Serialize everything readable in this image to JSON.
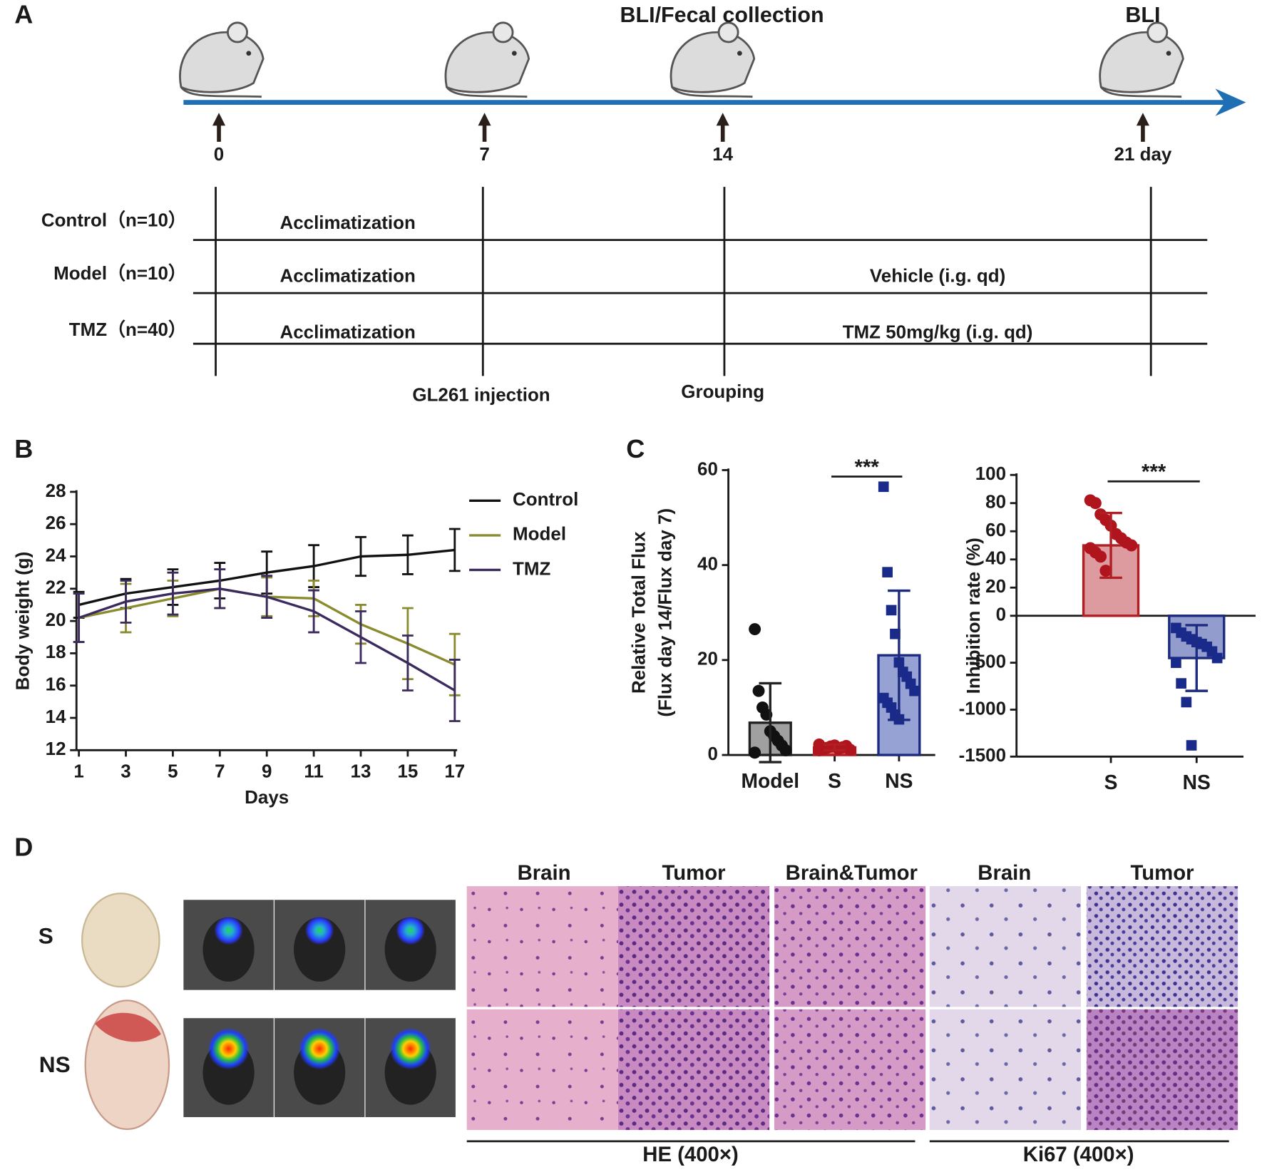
{
  "panel_labels": [
    "A",
    "B",
    "C",
    "D"
  ],
  "timeline": {
    "header_labels": [
      "BLI/Fecal collection",
      "BLI"
    ],
    "days": [
      "0",
      "7",
      "14",
      "21 day"
    ],
    "groups": [
      {
        "name": "Control（n=10）",
        "phases": [
          "Acclimatization"
        ]
      },
      {
        "name": "Model（n=10）",
        "phases": [
          "Acclimatization",
          "Vehicle (i.g. qd)"
        ]
      },
      {
        "name": "TMZ（n=40）",
        "phases": [
          "Acclimatization",
          "TMZ  50mg/kg (i.g. qd)"
        ]
      }
    ],
    "events": [
      "GL261  injection",
      "Grouping"
    ]
  },
  "chart_data": [
    {
      "type": "line",
      "xlabel": "Days",
      "ylabel": "Body weight (g)",
      "x": [
        1,
        3,
        5,
        7,
        9,
        11,
        13,
        15,
        17
      ],
      "xlim": [
        1,
        17
      ],
      "xticks": [
        1,
        3,
        5,
        7,
        9,
        11,
        13,
        15,
        17
      ],
      "ylim": [
        12,
        28
      ],
      "yticks": [
        12,
        14,
        16,
        18,
        20,
        22,
        24,
        26,
        28
      ],
      "grid": false,
      "legend": "right",
      "series": [
        {
          "name": "Control",
          "color": "#111111",
          "values": [
            21.0,
            21.7,
            22.1,
            22.5,
            23.0,
            23.4,
            24.0,
            24.1,
            24.4
          ],
          "errors": [
            0.8,
            0.9,
            1.1,
            1.1,
            1.3,
            1.3,
            1.2,
            1.2,
            1.3
          ]
        },
        {
          "name": "Model",
          "color": "#8a8a2e",
          "values": [
            20.2,
            20.8,
            21.4,
            22.0,
            21.5,
            21.4,
            19.8,
            18.6,
            17.3
          ],
          "errors": [
            1.5,
            1.5,
            1.1,
            1.2,
            1.2,
            1.1,
            1.2,
            2.2,
            1.9
          ]
        },
        {
          "name": "TMZ",
          "color": "#3b2a5e",
          "values": [
            20.2,
            21.2,
            21.7,
            22.0,
            21.5,
            20.6,
            19.0,
            17.4,
            15.7
          ],
          "errors": [
            1.5,
            1.3,
            1.3,
            1.2,
            1.3,
            1.3,
            1.6,
            1.7,
            1.9
          ]
        }
      ]
    },
    {
      "type": "bar",
      "ylabel": [
        "Relative Total Flux",
        "(Flux day 14/Flux day 7)"
      ],
      "categories": [
        "Model",
        "S",
        "NS"
      ],
      "values": [
        6.8,
        1.6,
        21
      ],
      "errors": [
        8.3,
        0.6,
        13.6
      ],
      "points": [
        [
          26.5,
          13.5,
          10,
          8.5,
          5,
          4,
          3,
          2,
          1,
          0.5
        ],
        [
          1.0,
          1.2,
          1.5,
          1.8,
          2.0,
          1.3,
          1.6,
          1.9,
          1.1,
          2.2
        ],
        [
          56.5,
          38.5,
          30.5,
          25.5,
          19.5,
          17.5,
          16.5,
          15,
          13.5,
          12,
          11,
          10,
          8.5,
          7.5
        ]
      ],
      "colors": [
        "#8f8f8f",
        "#d8585c",
        "#8592cc"
      ],
      "edge_colors": [
        "#222222",
        "#b01f24",
        "#1c2a80"
      ],
      "point_colors": [
        "#111111",
        "#b0141c",
        "#1a2a8a"
      ],
      "markers": [
        "circle",
        "circle",
        "square"
      ],
      "ylim": [
        0,
        60
      ],
      "yticks": [
        0,
        20,
        40,
        60
      ],
      "annotations": [
        {
          "text": "***",
          "categories": [
            "S",
            "NS"
          ]
        }
      ]
    },
    {
      "type": "bar",
      "ylabel": [
        "Inhibition rate (%)"
      ],
      "categories": [
        "S",
        "NS"
      ],
      "values": [
        50,
        -450
      ],
      "errors": [
        23,
        350
      ],
      "points": [
        [
          82,
          80,
          72,
          68,
          64,
          58,
          55,
          52,
          50,
          48,
          45,
          42,
          32
        ],
        [
          -130,
          -180,
          -220,
          -250,
          -280,
          -300,
          -330,
          -380,
          -450,
          -500,
          -720,
          -920,
          -1380
        ]
      ],
      "colors": [
        "#d88a8e",
        "#7f8cc4"
      ],
      "edge_colors": [
        "#b01f24",
        "#1c2a80"
      ],
      "point_colors": [
        "#b0141c",
        "#1a2a8a"
      ],
      "markers": [
        "circle",
        "square"
      ],
      "ylim": [
        -1500,
        100
      ],
      "yscale": "split-at-zero",
      "yticks": [
        -1500,
        -1000,
        -500,
        0,
        20,
        40,
        60,
        80,
        100
      ],
      "annotations": [
        {
          "text": "***",
          "categories": [
            "S",
            "NS"
          ]
        }
      ]
    }
  ],
  "histology": {
    "rows": [
      "S",
      "NS"
    ],
    "columns": [
      "Brain",
      "Tumor",
      "Brain&Tumor",
      "Brain",
      "Tumor"
    ],
    "stains": [
      "HE (400×)",
      "Ki67 (400×)"
    ]
  }
}
